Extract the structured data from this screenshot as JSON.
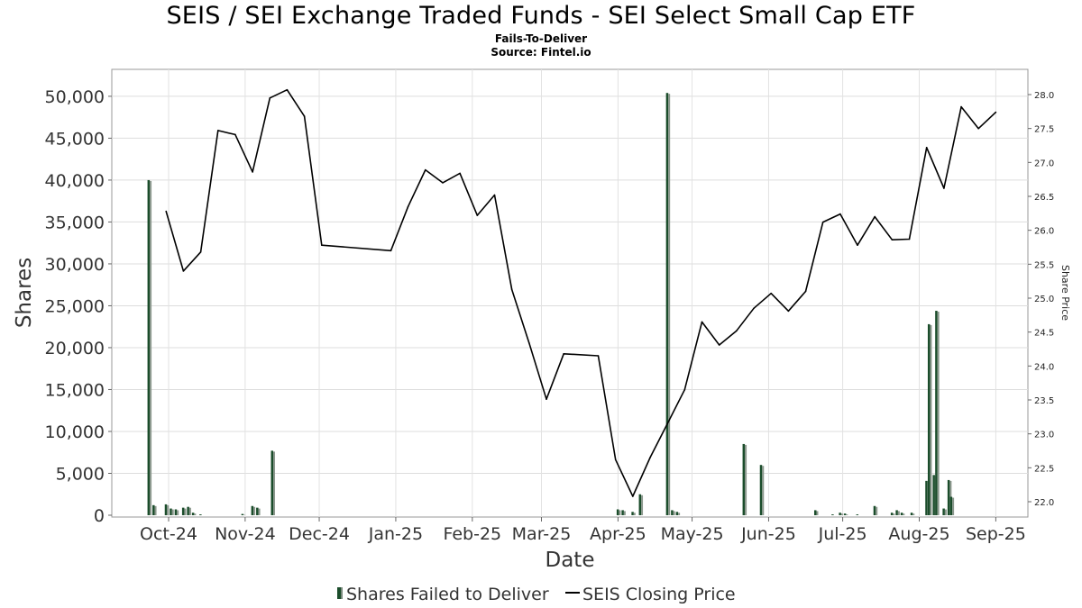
{
  "chart_data": {
    "type": "bar+line",
    "title": "SEIS / SEI Exchange Traded Funds - SEI Select Small Cap ETF",
    "subtitle": "Fails-To-Deliver",
    "source": "Source: Fintel.io",
    "xlabel": "Date",
    "ylabel": "Shares",
    "y2label": "Share Price",
    "x_ticks": [
      "Oct-24",
      "Nov-24",
      "Dec-24",
      "Jan-25",
      "Feb-25",
      "Mar-25",
      "Apr-25",
      "May-25",
      "Jun-25",
      "Jul-25",
      "Aug-25",
      "Sep-25"
    ],
    "y_ticks": [
      "0",
      "5,000",
      "10,000",
      "15,000",
      "20,000",
      "25,000",
      "30,000",
      "35,000",
      "40,000",
      "45,000",
      "50,000"
    ],
    "y2_ticks": [
      "22.0",
      "22.5",
      "23.0",
      "23.5",
      "24.0",
      "24.5",
      "25.0",
      "25.5",
      "26.0",
      "26.5",
      "27.0",
      "27.5",
      "28.0"
    ],
    "ylim": [
      0,
      53000
    ],
    "y2lim": [
      21.86,
      28.36
    ],
    "xlim": [
      "2024-09-08",
      "2025-09-14"
    ],
    "grid": true,
    "legend_position": "bottom",
    "legend": [
      "Shares Failed to Deliver",
      "SEIS Closing Price"
    ],
    "series": [
      {
        "name": "Shares Failed to Deliver",
        "type": "bar",
        "color": "#1b4d2b",
        "points": [
          {
            "date": "2024-09-23",
            "value": 40000
          },
          {
            "date": "2024-09-25",
            "value": 1200
          },
          {
            "date": "2024-09-30",
            "value": 1300
          },
          {
            "date": "2024-10-02",
            "value": 800
          },
          {
            "date": "2024-10-04",
            "value": 700
          },
          {
            "date": "2024-10-07",
            "value": 900
          },
          {
            "date": "2024-10-09",
            "value": 1000
          },
          {
            "date": "2024-10-11",
            "value": 300
          },
          {
            "date": "2024-10-14",
            "value": 100
          },
          {
            "date": "2024-10-31",
            "value": 150
          },
          {
            "date": "2024-11-04",
            "value": 1100
          },
          {
            "date": "2024-11-06",
            "value": 900
          },
          {
            "date": "2024-11-12",
            "value": 7700
          },
          {
            "date": "2025-04-01",
            "value": 700
          },
          {
            "date": "2025-04-03",
            "value": 600
          },
          {
            "date": "2025-04-07",
            "value": 400
          },
          {
            "date": "2025-04-10",
            "value": 2500
          },
          {
            "date": "2025-04-21",
            "value": 50400
          },
          {
            "date": "2025-04-23",
            "value": 600
          },
          {
            "date": "2025-04-25",
            "value": 400
          },
          {
            "date": "2025-05-22",
            "value": 8500
          },
          {
            "date": "2025-05-29",
            "value": 6000
          },
          {
            "date": "2025-06-20",
            "value": 600
          },
          {
            "date": "2025-06-27",
            "value": 100
          },
          {
            "date": "2025-06-30",
            "value": 300
          },
          {
            "date": "2025-07-02",
            "value": 200
          },
          {
            "date": "2025-07-07",
            "value": 100
          },
          {
            "date": "2025-07-14",
            "value": 1100
          },
          {
            "date": "2025-07-21",
            "value": 300
          },
          {
            "date": "2025-07-23",
            "value": 600
          },
          {
            "date": "2025-07-25",
            "value": 300
          },
          {
            "date": "2025-07-29",
            "value": 300
          },
          {
            "date": "2025-08-04",
            "value": 4100
          },
          {
            "date": "2025-08-05",
            "value": 22800
          },
          {
            "date": "2025-08-07",
            "value": 4800
          },
          {
            "date": "2025-08-08",
            "value": 24400
          },
          {
            "date": "2025-08-11",
            "value": 800
          },
          {
            "date": "2025-08-13",
            "value": 4200
          },
          {
            "date": "2025-08-14",
            "value": 2200
          }
        ]
      },
      {
        "name": "SEIS Closing Price",
        "type": "line",
        "axis": "right",
        "color": "#000000",
        "points": [
          {
            "date": "2024-09-30",
            "value": 26.28
          },
          {
            "date": "2024-10-07",
            "value": 25.4
          },
          {
            "date": "2024-10-14",
            "value": 25.68
          },
          {
            "date": "2024-10-21",
            "value": 27.47
          },
          {
            "date": "2024-10-28",
            "value": 27.41
          },
          {
            "date": "2024-11-04",
            "value": 26.86
          },
          {
            "date": "2024-11-11",
            "value": 27.95
          },
          {
            "date": "2024-11-18",
            "value": 28.07
          },
          {
            "date": "2024-11-25",
            "value": 27.68
          },
          {
            "date": "2024-12-02",
            "value": 25.78
          },
          {
            "date": "2024-12-30",
            "value": 25.7
          },
          {
            "date": "2025-01-06",
            "value": 26.35
          },
          {
            "date": "2025-01-13",
            "value": 26.89
          },
          {
            "date": "2025-01-20",
            "value": 26.7
          },
          {
            "date": "2025-01-27",
            "value": 26.84
          },
          {
            "date": "2025-02-03",
            "value": 26.22
          },
          {
            "date": "2025-02-10",
            "value": 26.52
          },
          {
            "date": "2025-02-17",
            "value": 25.13
          },
          {
            "date": "2025-02-24",
            "value": 24.34
          },
          {
            "date": "2025-03-03",
            "value": 23.51
          },
          {
            "date": "2025-03-10",
            "value": 24.18
          },
          {
            "date": "2025-03-24",
            "value": 24.15
          },
          {
            "date": "2025-03-31",
            "value": 22.62
          },
          {
            "date": "2025-04-07",
            "value": 22.08
          },
          {
            "date": "2025-04-14",
            "value": 22.65
          },
          {
            "date": "2025-04-21",
            "value": 23.15
          },
          {
            "date": "2025-04-28",
            "value": 23.65
          },
          {
            "date": "2025-05-05",
            "value": 24.65
          },
          {
            "date": "2025-05-12",
            "value": 24.31
          },
          {
            "date": "2025-05-19",
            "value": 24.52
          },
          {
            "date": "2025-05-26",
            "value": 24.85
          },
          {
            "date": "2025-06-02",
            "value": 25.07
          },
          {
            "date": "2025-06-09",
            "value": 24.81
          },
          {
            "date": "2025-06-16",
            "value": 25.1
          },
          {
            "date": "2025-06-23",
            "value": 26.12
          },
          {
            "date": "2025-06-30",
            "value": 26.24
          },
          {
            "date": "2025-07-07",
            "value": 25.78
          },
          {
            "date": "2025-07-14",
            "value": 26.2
          },
          {
            "date": "2025-07-21",
            "value": 25.86
          },
          {
            "date": "2025-07-28",
            "value": 25.87
          },
          {
            "date": "2025-08-04",
            "value": 27.22
          },
          {
            "date": "2025-08-11",
            "value": 26.62
          },
          {
            "date": "2025-08-18",
            "value": 27.82
          },
          {
            "date": "2025-08-25",
            "value": 27.5
          },
          {
            "date": "2025-09-01",
            "value": 27.74
          }
        ]
      }
    ]
  }
}
